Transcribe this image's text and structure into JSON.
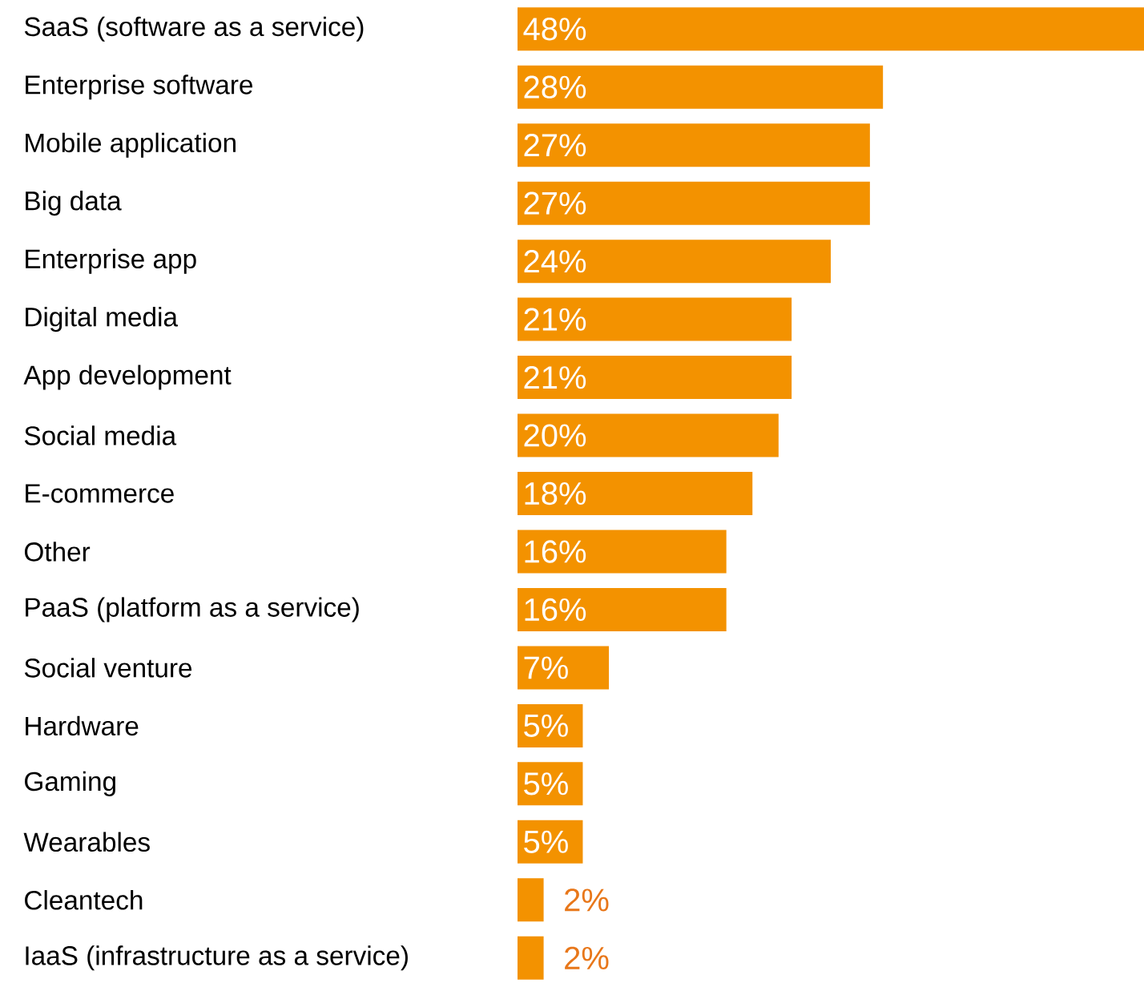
{
  "chart_data": {
    "type": "bar",
    "orientation": "horizontal",
    "categories": [
      "SaaS (software as a service)",
      "Enterprise software",
      "Mobile application",
      "Big data",
      "Enterprise app",
      "Digital media",
      "App development",
      "Social media",
      "E-commerce",
      "Other",
      "PaaS (platform as a service)",
      "Social venture",
      "Hardware",
      "Gaming",
      "Wearables",
      "Cleantech",
      "IaaS (infrastructure as a service)"
    ],
    "values": [
      48,
      28,
      27,
      27,
      24,
      21,
      21,
      20,
      18,
      16,
      16,
      7,
      5,
      5,
      5,
      2,
      2
    ],
    "value_labels": [
      "48%",
      "28%",
      "27%",
      "27%",
      "24%",
      "21%",
      "21%",
      "20%",
      "18%",
      "16%",
      "16%",
      "7%",
      "5%",
      "5%",
      "5%",
      "2%",
      "2%"
    ],
    "color": "#f39200",
    "tick_labels": "y"
  }
}
